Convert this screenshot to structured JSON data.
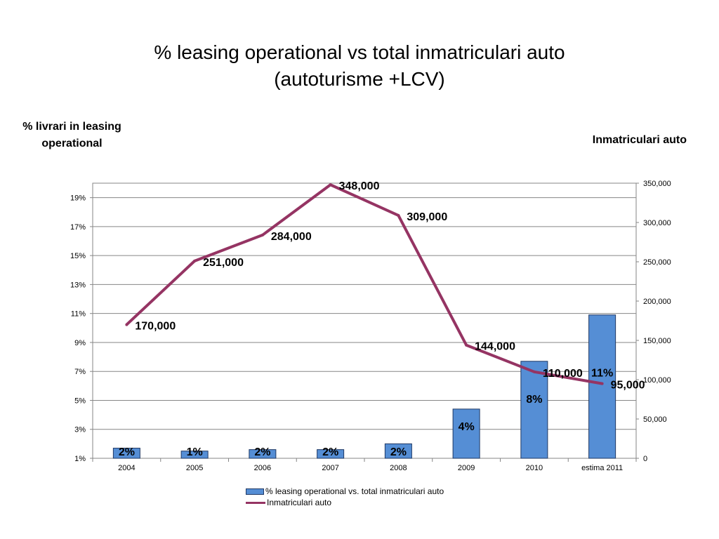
{
  "title_line1": "% leasing operational vs total inmatriculari auto",
  "title_line2": "(autoturisme +LCV)",
  "left_axis_title": "% livrari in leasing operational",
  "right_axis_title": "Inmatriculari auto",
  "colors": {
    "bar_fill": "#558ed5",
    "bar_stroke": "#1f3864",
    "line": "#953463",
    "grid": "#868686"
  },
  "chart_data": {
    "type": "bar",
    "categories": [
      "2004",
      "2005",
      "2006",
      "2007",
      "2008",
      "2009",
      "2010",
      "estima 2011"
    ],
    "series": [
      {
        "name": "% leasing operational vs. total inmatriculari auto",
        "type": "bar",
        "axis": "left",
        "values": [
          1.7,
          1.5,
          1.6,
          1.6,
          2.0,
          4.4,
          7.7,
          10.9
        ],
        "labels": [
          "2%",
          "1%",
          "2%",
          "2%",
          "2%",
          "4%",
          "8%",
          "11%"
        ]
      },
      {
        "name": "Inmatriculari auto",
        "type": "line",
        "axis": "right",
        "values": [
          170000,
          251000,
          284000,
          348000,
          309000,
          144000,
          110000,
          95000
        ],
        "labels": [
          "170,000",
          "251,000",
          "284,000",
          "348,000",
          "309,000",
          "144,000",
          "110,000",
          "95,000"
        ]
      }
    ],
    "y_left": {
      "min": 1,
      "max": 20,
      "ticks": [
        1,
        3,
        5,
        7,
        9,
        11,
        13,
        15,
        17,
        19
      ],
      "tick_labels": [
        "1%",
        "3%",
        "5%",
        "7%",
        "9%",
        "11%",
        "13%",
        "15%",
        "17%",
        "19%"
      ]
    },
    "y_right": {
      "min": 0,
      "max": 350000,
      "ticks": [
        0,
        50000,
        100000,
        150000,
        200000,
        250000,
        300000,
        350000
      ],
      "tick_labels": [
        "0",
        "50,000",
        "100,000",
        "150,000",
        "200,000",
        "250,000",
        "300,000",
        "350,000"
      ]
    },
    "grid": true,
    "legend_position": "bottom"
  }
}
